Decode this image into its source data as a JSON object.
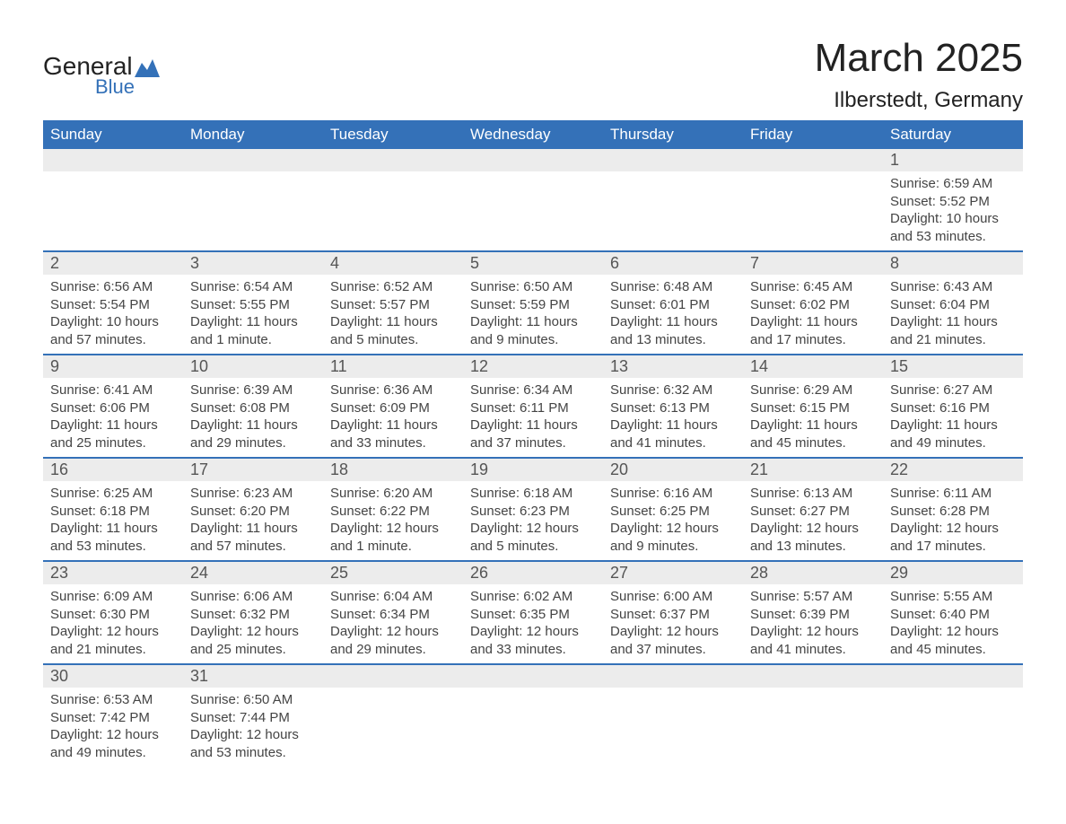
{
  "brand": {
    "name_a": "General",
    "name_b": "Blue",
    "triangle_color": "#3471b8"
  },
  "title": "March 2025",
  "location": "Ilberstedt, Germany",
  "colors": {
    "header_bg": "#3471b8",
    "header_fg": "#ffffff",
    "daynum_bg": "#ececec",
    "row_border": "#3471b8",
    "text": "#444444",
    "page_bg": "#ffffff"
  },
  "typography": {
    "title_fontsize": 44,
    "location_fontsize": 24,
    "header_fontsize": 17,
    "daynum_fontsize": 18,
    "body_fontsize": 15
  },
  "day_headers": [
    "Sunday",
    "Monday",
    "Tuesday",
    "Wednesday",
    "Thursday",
    "Friday",
    "Saturday"
  ],
  "weeks": [
    [
      {
        "empty": true
      },
      {
        "empty": true
      },
      {
        "empty": true
      },
      {
        "empty": true
      },
      {
        "empty": true
      },
      {
        "empty": true
      },
      {
        "num": "1",
        "sunrise": "Sunrise: 6:59 AM",
        "sunset": "Sunset: 5:52 PM",
        "daylight": "Daylight: 10 hours and 53 minutes."
      }
    ],
    [
      {
        "num": "2",
        "sunrise": "Sunrise: 6:56 AM",
        "sunset": "Sunset: 5:54 PM",
        "daylight": "Daylight: 10 hours and 57 minutes."
      },
      {
        "num": "3",
        "sunrise": "Sunrise: 6:54 AM",
        "sunset": "Sunset: 5:55 PM",
        "daylight": "Daylight: 11 hours and 1 minute."
      },
      {
        "num": "4",
        "sunrise": "Sunrise: 6:52 AM",
        "sunset": "Sunset: 5:57 PM",
        "daylight": "Daylight: 11 hours and 5 minutes."
      },
      {
        "num": "5",
        "sunrise": "Sunrise: 6:50 AM",
        "sunset": "Sunset: 5:59 PM",
        "daylight": "Daylight: 11 hours and 9 minutes."
      },
      {
        "num": "6",
        "sunrise": "Sunrise: 6:48 AM",
        "sunset": "Sunset: 6:01 PM",
        "daylight": "Daylight: 11 hours and 13 minutes."
      },
      {
        "num": "7",
        "sunrise": "Sunrise: 6:45 AM",
        "sunset": "Sunset: 6:02 PM",
        "daylight": "Daylight: 11 hours and 17 minutes."
      },
      {
        "num": "8",
        "sunrise": "Sunrise: 6:43 AM",
        "sunset": "Sunset: 6:04 PM",
        "daylight": "Daylight: 11 hours and 21 minutes."
      }
    ],
    [
      {
        "num": "9",
        "sunrise": "Sunrise: 6:41 AM",
        "sunset": "Sunset: 6:06 PM",
        "daylight": "Daylight: 11 hours and 25 minutes."
      },
      {
        "num": "10",
        "sunrise": "Sunrise: 6:39 AM",
        "sunset": "Sunset: 6:08 PM",
        "daylight": "Daylight: 11 hours and 29 minutes."
      },
      {
        "num": "11",
        "sunrise": "Sunrise: 6:36 AM",
        "sunset": "Sunset: 6:09 PM",
        "daylight": "Daylight: 11 hours and 33 minutes."
      },
      {
        "num": "12",
        "sunrise": "Sunrise: 6:34 AM",
        "sunset": "Sunset: 6:11 PM",
        "daylight": "Daylight: 11 hours and 37 minutes."
      },
      {
        "num": "13",
        "sunrise": "Sunrise: 6:32 AM",
        "sunset": "Sunset: 6:13 PM",
        "daylight": "Daylight: 11 hours and 41 minutes."
      },
      {
        "num": "14",
        "sunrise": "Sunrise: 6:29 AM",
        "sunset": "Sunset: 6:15 PM",
        "daylight": "Daylight: 11 hours and 45 minutes."
      },
      {
        "num": "15",
        "sunrise": "Sunrise: 6:27 AM",
        "sunset": "Sunset: 6:16 PM",
        "daylight": "Daylight: 11 hours and 49 minutes."
      }
    ],
    [
      {
        "num": "16",
        "sunrise": "Sunrise: 6:25 AM",
        "sunset": "Sunset: 6:18 PM",
        "daylight": "Daylight: 11 hours and 53 minutes."
      },
      {
        "num": "17",
        "sunrise": "Sunrise: 6:23 AM",
        "sunset": "Sunset: 6:20 PM",
        "daylight": "Daylight: 11 hours and 57 minutes."
      },
      {
        "num": "18",
        "sunrise": "Sunrise: 6:20 AM",
        "sunset": "Sunset: 6:22 PM",
        "daylight": "Daylight: 12 hours and 1 minute."
      },
      {
        "num": "19",
        "sunrise": "Sunrise: 6:18 AM",
        "sunset": "Sunset: 6:23 PM",
        "daylight": "Daylight: 12 hours and 5 minutes."
      },
      {
        "num": "20",
        "sunrise": "Sunrise: 6:16 AM",
        "sunset": "Sunset: 6:25 PM",
        "daylight": "Daylight: 12 hours and 9 minutes."
      },
      {
        "num": "21",
        "sunrise": "Sunrise: 6:13 AM",
        "sunset": "Sunset: 6:27 PM",
        "daylight": "Daylight: 12 hours and 13 minutes."
      },
      {
        "num": "22",
        "sunrise": "Sunrise: 6:11 AM",
        "sunset": "Sunset: 6:28 PM",
        "daylight": "Daylight: 12 hours and 17 minutes."
      }
    ],
    [
      {
        "num": "23",
        "sunrise": "Sunrise: 6:09 AM",
        "sunset": "Sunset: 6:30 PM",
        "daylight": "Daylight: 12 hours and 21 minutes."
      },
      {
        "num": "24",
        "sunrise": "Sunrise: 6:06 AM",
        "sunset": "Sunset: 6:32 PM",
        "daylight": "Daylight: 12 hours and 25 minutes."
      },
      {
        "num": "25",
        "sunrise": "Sunrise: 6:04 AM",
        "sunset": "Sunset: 6:34 PM",
        "daylight": "Daylight: 12 hours and 29 minutes."
      },
      {
        "num": "26",
        "sunrise": "Sunrise: 6:02 AM",
        "sunset": "Sunset: 6:35 PM",
        "daylight": "Daylight: 12 hours and 33 minutes."
      },
      {
        "num": "27",
        "sunrise": "Sunrise: 6:00 AM",
        "sunset": "Sunset: 6:37 PM",
        "daylight": "Daylight: 12 hours and 37 minutes."
      },
      {
        "num": "28",
        "sunrise": "Sunrise: 5:57 AM",
        "sunset": "Sunset: 6:39 PM",
        "daylight": "Daylight: 12 hours and 41 minutes."
      },
      {
        "num": "29",
        "sunrise": "Sunrise: 5:55 AM",
        "sunset": "Sunset: 6:40 PM",
        "daylight": "Daylight: 12 hours and 45 minutes."
      }
    ],
    [
      {
        "num": "30",
        "sunrise": "Sunrise: 6:53 AM",
        "sunset": "Sunset: 7:42 PM",
        "daylight": "Daylight: 12 hours and 49 minutes."
      },
      {
        "num": "31",
        "sunrise": "Sunrise: 6:50 AM",
        "sunset": "Sunset: 7:44 PM",
        "daylight": "Daylight: 12 hours and 53 minutes."
      },
      {
        "empty": true
      },
      {
        "empty": true
      },
      {
        "empty": true
      },
      {
        "empty": true
      },
      {
        "empty": true
      }
    ]
  ]
}
